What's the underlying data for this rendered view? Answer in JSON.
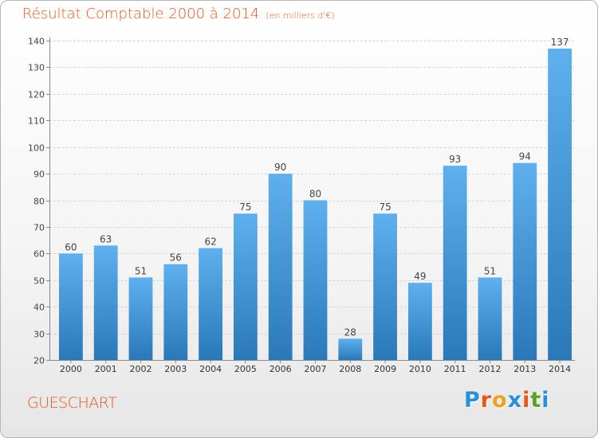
{
  "title": "Résultat Comptable 2000 à 2014",
  "subtitle": "(en milliers d'€)",
  "commune": "GUESCHART",
  "logo": {
    "text": "Proxiti",
    "letters": [
      "P",
      "r",
      "o",
      "x",
      "i",
      "t",
      "i"
    ],
    "colors": [
      "#2a8fd4",
      "#e8561c",
      "#f0a020",
      "#2a8fd4",
      "#e8561c",
      "#5aa02c",
      "#2a8fd4"
    ]
  },
  "colors": {
    "accent": "#e8561c",
    "bar_light": "#5fb0ee",
    "bar_dark": "#2a78b8"
  },
  "chart_data": {
    "type": "bar",
    "categories": [
      "2000",
      "2001",
      "2002",
      "2003",
      "2004",
      "2005",
      "2006",
      "2007",
      "2008",
      "2009",
      "2010",
      "2011",
      "2012",
      "2013",
      "2014"
    ],
    "values": [
      60,
      63,
      51,
      56,
      62,
      75,
      90,
      80,
      28,
      75,
      49,
      93,
      51,
      94,
      137
    ],
    "ylim": [
      20,
      140
    ],
    "yticks": [
      20,
      30,
      40,
      50,
      60,
      70,
      80,
      90,
      100,
      110,
      120,
      130,
      140
    ],
    "grid": true,
    "xlabel": "",
    "ylabel": ""
  }
}
